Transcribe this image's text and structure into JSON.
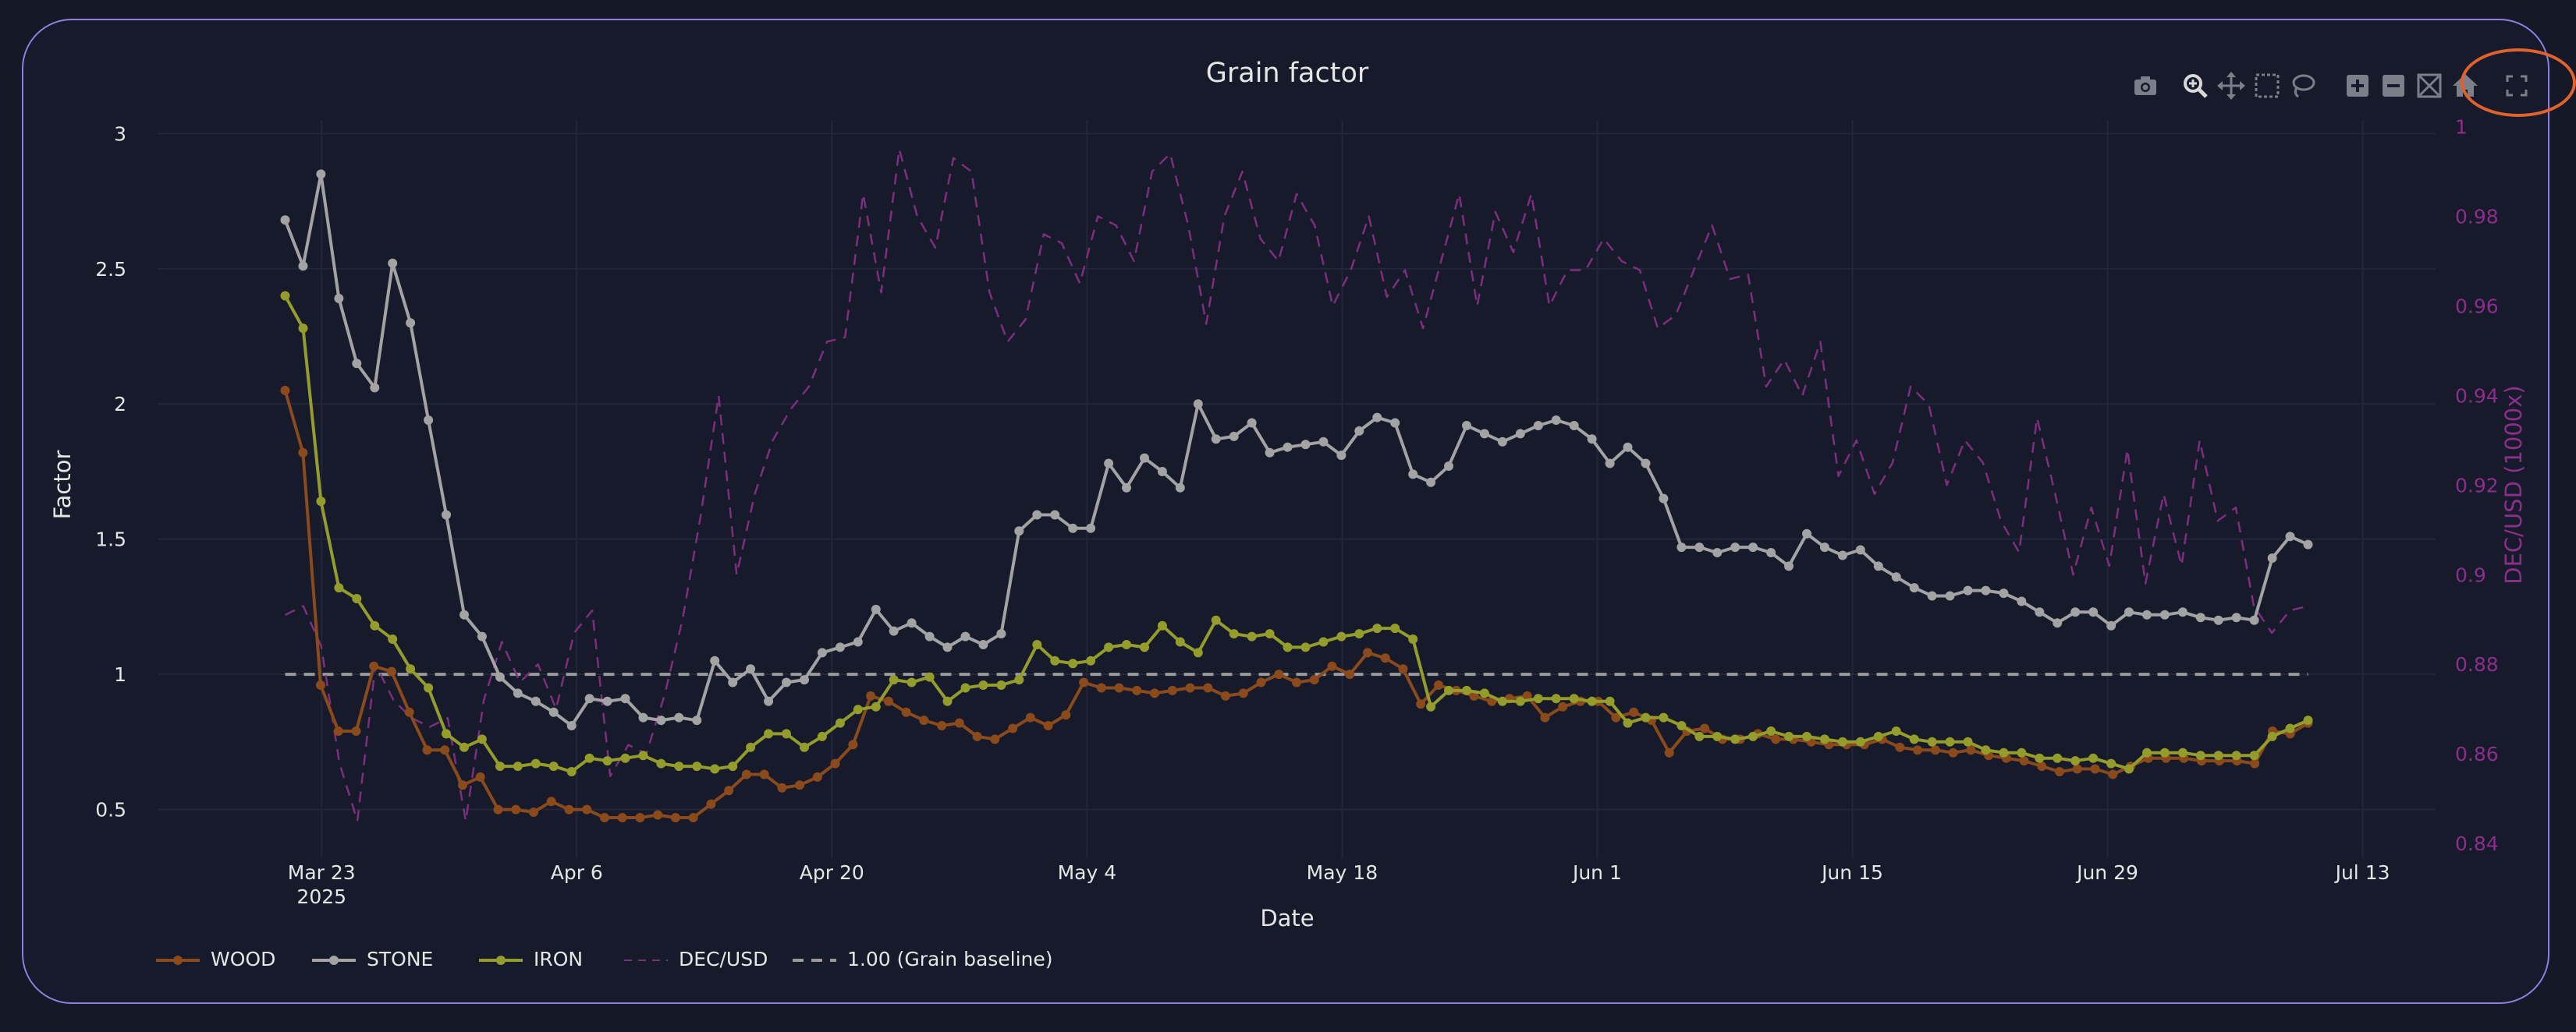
{
  "chart_data": {
    "type": "line",
    "title": "Grain factor",
    "xlabel": "Date",
    "ylabel": "Factor",
    "y2label": "DEC/USD (1000x)",
    "x_start": "2025-03-21",
    "x_end": "2025-07-10",
    "xlim": [
      "2025-03-14",
      "2025-07-17"
    ],
    "ylim": [
      0.32,
      3.05
    ],
    "y2lim": [
      0.8367,
      1.0015
    ],
    "x_ticks": [
      {
        "date": "2025-03-23",
        "label": "Mar 23",
        "sub": "2025"
      },
      {
        "date": "2025-04-06",
        "label": "Apr 6",
        "sub": ""
      },
      {
        "date": "2025-04-20",
        "label": "Apr 20",
        "sub": ""
      },
      {
        "date": "2025-05-04",
        "label": "May 4",
        "sub": ""
      },
      {
        "date": "2025-05-18",
        "label": "May 18",
        "sub": ""
      },
      {
        "date": "2025-06-01",
        "label": "Jun 1",
        "sub": ""
      },
      {
        "date": "2025-06-15",
        "label": "Jun 15",
        "sub": ""
      },
      {
        "date": "2025-06-29",
        "label": "Jun 29",
        "sub": ""
      },
      {
        "date": "2025-07-13",
        "label": "Jul 13",
        "sub": ""
      }
    ],
    "y_ticks": [
      0.5,
      1,
      1.5,
      2,
      2.5,
      3
    ],
    "y2_ticks": [
      0.84,
      0.86,
      0.88,
      0.9,
      0.92,
      0.94,
      0.96,
      0.98,
      1
    ],
    "grid": true,
    "legend_position": "bottom-left",
    "baseline": {
      "name": "1.00 (Grain baseline)",
      "value": 1.0,
      "color": "#9a9a9a"
    },
    "series": [
      {
        "name": "WOOD",
        "color": "#8a4a1c",
        "axis": "y",
        "dash": false,
        "markers": true,
        "values": [
          2.05,
          1.82,
          0.96,
          0.79,
          0.79,
          1.03,
          1.01,
          0.86,
          0.72,
          0.72,
          0.59,
          0.62,
          0.5,
          0.5,
          0.49,
          0.53,
          0.5,
          0.5,
          0.47,
          0.47,
          0.47,
          0.48,
          0.47,
          0.47,
          0.52,
          0.57,
          0.63,
          0.63,
          0.58,
          0.59,
          0.62,
          0.67,
          0.74,
          0.92,
          0.9,
          0.86,
          0.83,
          0.81,
          0.82,
          0.77,
          0.76,
          0.8,
          0.84,
          0.81,
          0.85,
          0.97,
          0.95,
          0.95,
          0.94,
          0.93,
          0.94,
          0.95,
          0.95,
          0.92,
          0.93,
          0.97,
          1.0,
          0.97,
          0.98,
          1.03,
          1.0,
          1.08,
          1.06,
          1.02,
          0.89,
          0.96,
          0.94,
          0.92,
          0.9,
          0.91,
          0.92,
          0.84,
          0.88,
          0.9,
          0.9,
          0.84,
          0.86,
          0.83,
          0.71,
          0.79,
          0.8,
          0.76,
          0.76,
          0.78,
          0.76,
          0.76,
          0.75,
          0.74,
          0.74,
          0.74,
          0.76,
          0.73,
          0.72,
          0.72,
          0.71,
          0.72,
          0.7,
          0.69,
          0.68,
          0.66,
          0.64,
          0.65,
          0.65,
          0.63,
          0.66,
          0.69,
          0.69,
          0.69,
          0.68,
          0.68,
          0.68,
          0.67,
          0.79,
          0.78,
          0.82
        ]
      },
      {
        "name": "STONE",
        "color": "#a3a3a3",
        "axis": "y",
        "dash": false,
        "markers": true,
        "values": [
          2.68,
          2.51,
          2.85,
          2.39,
          2.15,
          2.06,
          2.52,
          2.3,
          1.94,
          1.59,
          1.22,
          1.14,
          0.99,
          0.93,
          0.9,
          0.86,
          0.81,
          0.91,
          0.9,
          0.91,
          0.84,
          0.83,
          0.84,
          0.83,
          1.05,
          0.97,
          1.02,
          0.9,
          0.97,
          0.98,
          1.08,
          1.1,
          1.12,
          1.24,
          1.16,
          1.19,
          1.14,
          1.1,
          1.14,
          1.11,
          1.15,
          1.53,
          1.59,
          1.59,
          1.54,
          1.54,
          1.78,
          1.69,
          1.8,
          1.75,
          1.69,
          2.0,
          1.87,
          1.88,
          1.93,
          1.82,
          1.84,
          1.85,
          1.86,
          1.81,
          1.9,
          1.95,
          1.93,
          1.74,
          1.71,
          1.77,
          1.92,
          1.89,
          1.86,
          1.89,
          1.92,
          1.94,
          1.92,
          1.87,
          1.78,
          1.84,
          1.78,
          1.65,
          1.47,
          1.47,
          1.45,
          1.47,
          1.47,
          1.45,
          1.4,
          1.52,
          1.47,
          1.44,
          1.46,
          1.4,
          1.36,
          1.32,
          1.29,
          1.29,
          1.31,
          1.31,
          1.3,
          1.27,
          1.23,
          1.19,
          1.23,
          1.23,
          1.18,
          1.23,
          1.22,
          1.22,
          1.23,
          1.21,
          1.2,
          1.21,
          1.2,
          1.43,
          1.51,
          1.48
        ]
      },
      {
        "name": "IRON",
        "color": "#949c2c",
        "axis": "y",
        "dash": false,
        "markers": true,
        "values": [
          2.4,
          2.28,
          1.64,
          1.32,
          1.28,
          1.18,
          1.13,
          1.02,
          0.95,
          0.78,
          0.73,
          0.76,
          0.66,
          0.66,
          0.67,
          0.66,
          0.64,
          0.69,
          0.68,
          0.69,
          0.7,
          0.67,
          0.66,
          0.66,
          0.65,
          0.66,
          0.73,
          0.78,
          0.78,
          0.73,
          0.77,
          0.82,
          0.87,
          0.88,
          0.98,
          0.97,
          0.99,
          0.9,
          0.95,
          0.96,
          0.96,
          0.98,
          1.11,
          1.05,
          1.04,
          1.05,
          1.1,
          1.11,
          1.1,
          1.18,
          1.12,
          1.08,
          1.2,
          1.15,
          1.14,
          1.15,
          1.1,
          1.1,
          1.12,
          1.14,
          1.15,
          1.17,
          1.17,
          1.13,
          0.88,
          0.94,
          0.94,
          0.93,
          0.9,
          0.9,
          0.91,
          0.91,
          0.91,
          0.9,
          0.9,
          0.82,
          0.84,
          0.84,
          0.81,
          0.77,
          0.77,
          0.76,
          0.77,
          0.79,
          0.77,
          0.77,
          0.76,
          0.75,
          0.75,
          0.77,
          0.79,
          0.76,
          0.75,
          0.75,
          0.75,
          0.72,
          0.71,
          0.71,
          0.69,
          0.69,
          0.68,
          0.69,
          0.67,
          0.65,
          0.71,
          0.71,
          0.71,
          0.7,
          0.7,
          0.7,
          0.7,
          0.77,
          0.8,
          0.83
        ]
      },
      {
        "name": "DEC/USD",
        "color": "#7e2e7e",
        "axis": "y2",
        "dash": true,
        "markers": false,
        "values": [
          0.891,
          0.893,
          0.884,
          0.858,
          0.845,
          0.88,
          0.872,
          0.868,
          0.866,
          0.868,
          0.845,
          0.872,
          0.885,
          0.876,
          0.88,
          0.87,
          0.887,
          0.892,
          0.855,
          0.862,
          0.86,
          0.873,
          0.89,
          0.913,
          0.94,
          0.9,
          0.918,
          0.93,
          0.937,
          0.942,
          0.952,
          0.953,
          0.985,
          0.963,
          0.995,
          0.98,
          0.973,
          0.993,
          0.99,
          0.963,
          0.952,
          0.957,
          0.976,
          0.974,
          0.965,
          0.98,
          0.978,
          0.97,
          0.99,
          0.994,
          0.978,
          0.956,
          0.98,
          0.99,
          0.975,
          0.97,
          0.985,
          0.978,
          0.96,
          0.968,
          0.98,
          0.962,
          0.968,
          0.955,
          0.97,
          0.985,
          0.96,
          0.981,
          0.972,
          0.985,
          0.96,
          0.968,
          0.968,
          0.975,
          0.97,
          0.968,
          0.955,
          0.958,
          0.968,
          0.978,
          0.966,
          0.967,
          0.942,
          0.948,
          0.94,
          0.952,
          0.922,
          0.93,
          0.918,
          0.925,
          0.942,
          0.938,
          0.92,
          0.93,
          0.925,
          0.912,
          0.905,
          0.935,
          0.918,
          0.9,
          0.915,
          0.902,
          0.928,
          0.898,
          0.918,
          0.902,
          0.93,
          0.912,
          0.915,
          0.893,
          0.887,
          0.892,
          0.893
        ]
      }
    ]
  },
  "modebar": [
    {
      "id": "camera",
      "title": "Download plot as a png"
    },
    {
      "id": "zoom",
      "title": "Zoom"
    },
    {
      "id": "pan",
      "title": "Pan"
    },
    {
      "id": "box-select",
      "title": "Box Select"
    },
    {
      "id": "lasso-select",
      "title": "Lasso Select"
    },
    {
      "id": "zoom-in",
      "title": "Zoom in"
    },
    {
      "id": "zoom-out",
      "title": "Zoom out"
    },
    {
      "id": "autoscale",
      "title": "Autoscale"
    },
    {
      "id": "reset-axes",
      "title": "Reset axes"
    },
    {
      "id": "fullscreen",
      "title": "Fullscreen"
    }
  ],
  "colors": {
    "background": "#151826",
    "panel": "#161a2a",
    "border": "#8f7fe0",
    "highlight": "#e0622c",
    "axis_text": "#e6e6e6",
    "y2_text": "#8a2f8a"
  }
}
